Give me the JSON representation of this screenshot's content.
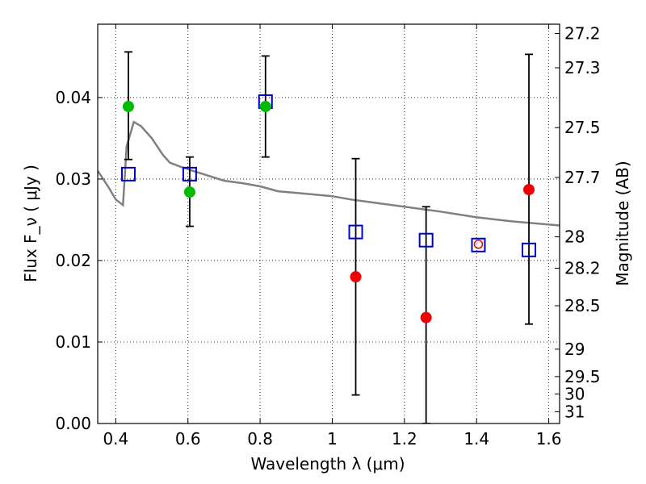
{
  "chart_data": {
    "type": "scatter",
    "xlabel": "Wavelength  λ (μm)",
    "ylabel": "Flux  F_ν  ( μJy )",
    "y2label": "Magnitude (AB)",
    "xlim": [
      0.35,
      1.63
    ],
    "ylim": [
      0.0,
      0.049
    ],
    "grid": true,
    "x_ticks": [
      0.4,
      0.6,
      0.8,
      1.0,
      1.2,
      1.4,
      1.6
    ],
    "x_tick_labels": [
      "0.4",
      "0.6",
      "0.8",
      "1",
      "1.2",
      "1.4",
      "1.6"
    ],
    "y_ticks": [
      0.0,
      0.01,
      0.02,
      0.03,
      0.04
    ],
    "y_tick_labels": [
      "0.00",
      "0.01",
      "0.02",
      "0.03",
      "0.04"
    ],
    "y2_ticks": [
      "27.2",
      "27.3",
      "27.5",
      "27.7",
      "28",
      "28.2",
      "28.5",
      "29",
      "29.5",
      "30",
      "31"
    ],
    "colors": {
      "spectrum": "#808080",
      "detected": "#00bb00",
      "upper_limit": "#ee0000",
      "model": "#0000cc",
      "errorbar": "#000000"
    },
    "series": [
      {
        "x": [
          0.435,
          0.605,
          0.815,
          1.065,
          1.26,
          1.405,
          1.545
        ],
        "y": [
          0.0389,
          0.0284,
          0.0389,
          0.018,
          0.013,
          0.022,
          0.0287
        ],
        "yerr_low": [
          0.0324,
          0.0242,
          0.0327,
          0.0035,
          0.0,
          null,
          0.0122
        ],
        "yerr_high": [
          0.0456,
          0.0327,
          0.0451,
          0.0325,
          0.0266,
          null,
          0.0453
        ],
        "marker_color": [
          "detected",
          "detected",
          "detected",
          "upper_limit",
          "upper_limit",
          "upper_limit",
          "upper_limit"
        ]
      },
      {
        "x": [
          0.435,
          0.605,
          0.815,
          1.065,
          1.26,
          1.405,
          1.545
        ],
        "y": [
          0.0306,
          0.0306,
          0.0395,
          0.0235,
          0.0225,
          0.0219,
          0.0213
        ],
        "marker": "open-square"
      },
      {
        "type": "line",
        "x": [
          0.35,
          0.38,
          0.4,
          0.42,
          0.43,
          0.45,
          0.47,
          0.5,
          0.53,
          0.55,
          0.58,
          0.6,
          0.65,
          0.7,
          0.75,
          0.8,
          0.85,
          0.9,
          0.95,
          1.0,
          1.05,
          1.1,
          1.2,
          1.3,
          1.4,
          1.5,
          1.63
        ],
        "y": [
          0.031,
          0.029,
          0.0275,
          0.0268,
          0.034,
          0.037,
          0.0365,
          0.035,
          0.033,
          0.032,
          0.0315,
          0.0312,
          0.0305,
          0.0298,
          0.0295,
          0.0291,
          0.0285,
          0.0283,
          0.0281,
          0.0279,
          0.0275,
          0.0272,
          0.0266,
          0.026,
          0.0253,
          0.0248,
          0.0243
        ]
      }
    ]
  }
}
